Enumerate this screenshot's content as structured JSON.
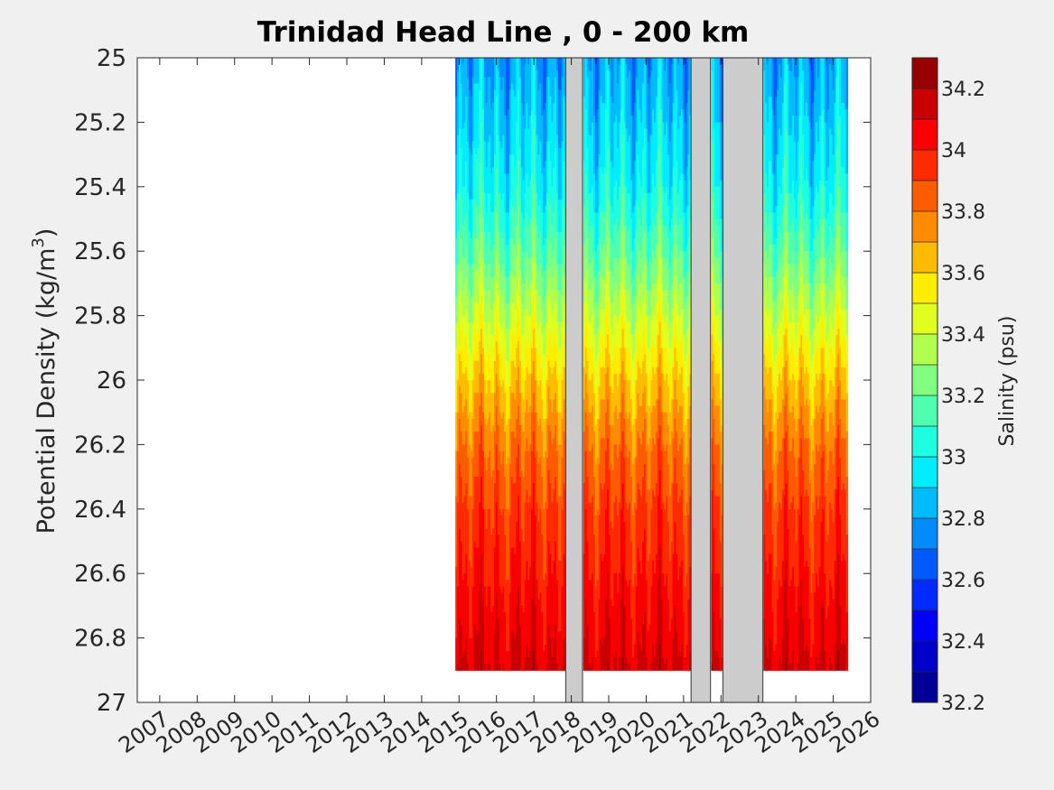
{
  "chart_data": {
    "type": "heatmap",
    "title": "Trinidad Head Line , 0 - 200 km",
    "ylabel": "Potential Density (kg/m",
    "ylabel_sup": "3",
    "ylabel_close": ")",
    "xlim": [
      2006.4,
      2026.0
    ],
    "ylim": [
      25,
      27
    ],
    "y_reversed": true,
    "x_ticks": [
      2007,
      2008,
      2009,
      2010,
      2011,
      2012,
      2013,
      2014,
      2015,
      2016,
      2017,
      2018,
      2019,
      2020,
      2021,
      2022,
      2023,
      2024,
      2025,
      2026
    ],
    "y_ticks": [
      "25",
      "25.2",
      "25.4",
      "25.6",
      "25.8",
      "26",
      "26.2",
      "26.4",
      "26.6",
      "26.8",
      "27"
    ],
    "y_tick_values": [
      25,
      25.2,
      25.4,
      25.6,
      25.8,
      26,
      26.2,
      26.4,
      26.6,
      26.8,
      27
    ],
    "data_start": 2014.9,
    "data_end": 2025.35,
    "data_bottom_density": 26.9,
    "gaps": [
      {
        "start": 2017.85,
        "end": 2018.3
      },
      {
        "start": 2021.2,
        "end": 2021.72
      },
      {
        "start": 2022.05,
        "end": 2023.12
      }
    ],
    "colorbar": {
      "label": "Salinity (psu)",
      "min": 32.2,
      "max": 34.3,
      "step": 0.1,
      "ticks": [
        "32.2",
        "32.4",
        "32.6",
        "32.8",
        "33",
        "33.2",
        "33.4",
        "33.6",
        "33.8",
        "34",
        "34.2"
      ],
      "tick_values": [
        32.2,
        32.4,
        32.6,
        32.8,
        33.0,
        33.2,
        33.4,
        33.6,
        33.8,
        34.0,
        34.2
      ],
      "colormap": "jet"
    },
    "salinity_profile": {
      "density": [
        25.0,
        25.2,
        25.4,
        25.6,
        25.8,
        26.0,
        26.2,
        26.4,
        26.6,
        26.8,
        26.9,
        27.0
      ],
      "salinity": [
        32.8,
        32.9,
        33.0,
        33.18,
        33.4,
        33.62,
        33.8,
        33.92,
        34.0,
        34.08,
        34.12,
        34.15
      ]
    },
    "gap_color": "#cccccc"
  }
}
